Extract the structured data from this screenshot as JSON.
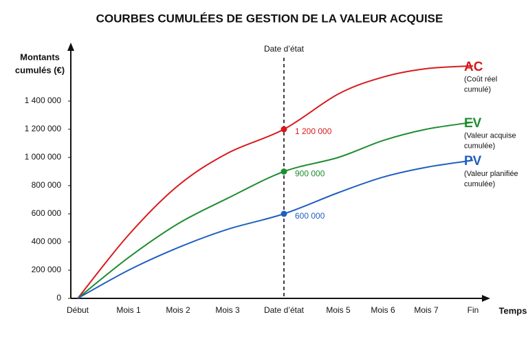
{
  "chart_data": {
    "type": "line",
    "title": "COURBES CUMULÉES DE GESTION DE LA VALEUR ACQUISE",
    "y_label": [
      "Montants",
      "cumulés (€)"
    ],
    "x_label": "Temps",
    "reference_line_label": "Date d’état",
    "categories": [
      "Début",
      "Mois 1",
      "Mois 2",
      "Mois 3",
      "Date d’état",
      "Mois 5",
      "Mois 6",
      "Mois 7",
      "Fin"
    ],
    "ylim": [
      0,
      1800000
    ],
    "yticks": [
      0,
      {
        "value": 200000,
        "label": "200 000"
      },
      {
        "value": 400000,
        "label": "400 000"
      },
      {
        "value": 600000,
        "label": "600 000"
      },
      {
        "value": 800000,
        "label": "800 000"
      },
      {
        "value": 1000000,
        "label": "1 000 000"
      },
      {
        "value": 1200000,
        "label": "1 200 000"
      },
      {
        "value": 1400000,
        "label": "1 400 000"
      }
    ],
    "grid": false,
    "series": [
      {
        "name": "AC",
        "description": [
          "(Coût réel",
          "cumulé)"
        ],
        "color": "#d7191c",
        "values": [
          0,
          450000,
          800000,
          1030000,
          1200000,
          1450000,
          1570000,
          1630000,
          1650000
        ],
        "value_labels": [
          null,
          null,
          null,
          null,
          "1 200 000",
          null,
          null,
          null,
          null
        ]
      },
      {
        "name": "EV",
        "description": [
          "(Valeur acquise",
          "cumulée)"
        ],
        "color": "#1e8c2e",
        "values": [
          0,
          290000,
          530000,
          710000,
          900000,
          1000000,
          1120000,
          1200000,
          1250000
        ],
        "value_labels": [
          null,
          null,
          null,
          null,
          "900 000",
          null,
          null,
          null,
          null
        ]
      },
      {
        "name": "PV",
        "description": [
          "(Valeur planifiée",
          "cumulée)"
        ],
        "color": "#1f5fbf",
        "values": [
          0,
          200000,
          360000,
          490000,
          600000,
          750000,
          860000,
          930000,
          980000
        ],
        "value_labels": [
          null,
          null,
          null,
          null,
          "600 000",
          null,
          null,
          null,
          null
        ]
      }
    ]
  }
}
